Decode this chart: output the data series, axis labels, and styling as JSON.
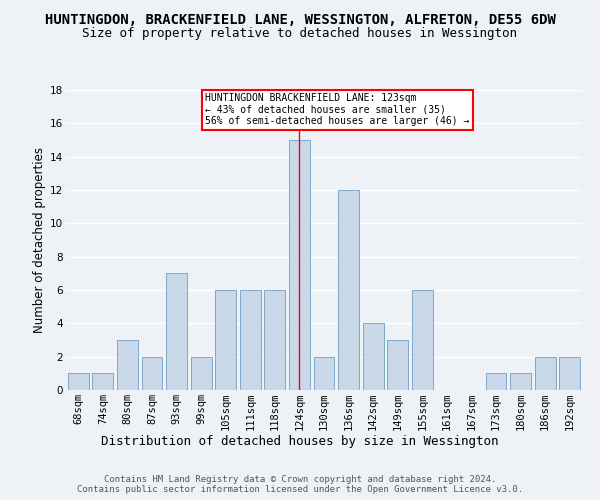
{
  "title1": "HUNTINGDON, BRACKENFIELD LANE, WESSINGTON, ALFRETON, DE55 6DW",
  "title2": "Size of property relative to detached houses in Wessington",
  "xlabel": "Distribution of detached houses by size in Wessington",
  "ylabel": "Number of detached properties",
  "categories": [
    "68sqm",
    "74sqm",
    "80sqm",
    "87sqm",
    "93sqm",
    "99sqm",
    "105sqm",
    "111sqm",
    "118sqm",
    "124sqm",
    "130sqm",
    "136sqm",
    "142sqm",
    "149sqm",
    "155sqm",
    "161sqm",
    "167sqm",
    "173sqm",
    "180sqm",
    "186sqm",
    "192sqm"
  ],
  "values": [
    1,
    1,
    3,
    2,
    7,
    2,
    6,
    6,
    6,
    15,
    2,
    12,
    4,
    3,
    6,
    0,
    0,
    1,
    1,
    2,
    2
  ],
  "bar_color": "#c8d8e8",
  "bar_edge_color": "#7fa8c8",
  "highlight_index": 9,
  "highlight_color": "#ff0000",
  "annotation_text": "HUNTINGDON BRACKENFIELD LANE: 123sqm\n← 43% of detached houses are smaller (35)\n56% of semi-detached houses are larger (46) →",
  "annotation_box_color": "#ffffff",
  "annotation_box_edge_color": "#ff0000",
  "ylim": [
    0,
    18
  ],
  "yticks": [
    0,
    2,
    4,
    6,
    8,
    10,
    12,
    14,
    16,
    18
  ],
  "footer_text": "Contains HM Land Registry data © Crown copyright and database right 2024.\nContains public sector information licensed under the Open Government Licence v3.0.",
  "bg_color": "#eef2f7",
  "plot_bg_color": "#eef2f7",
  "grid_color": "#ffffff",
  "title1_fontsize": 10,
  "title2_fontsize": 9,
  "xlabel_fontsize": 9,
  "ylabel_fontsize": 8.5,
  "tick_fontsize": 7.5,
  "footer_fontsize": 6.5
}
